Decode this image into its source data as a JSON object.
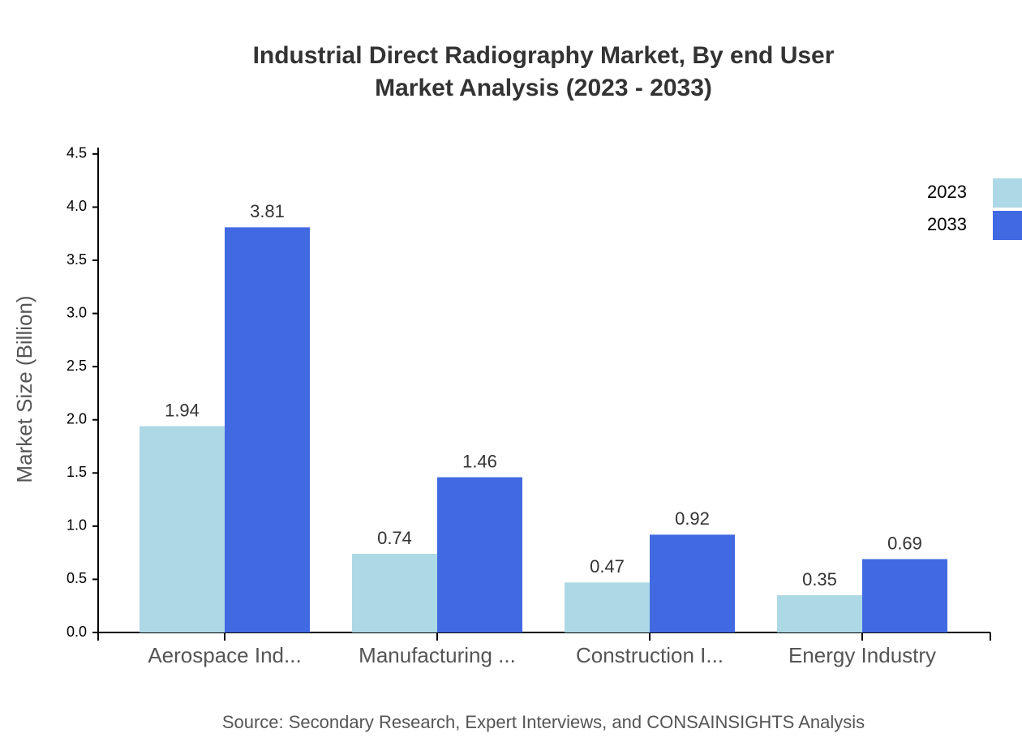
{
  "chart_data": {
    "type": "bar",
    "title": "Industrial Direct Radiography Market, By end User",
    "subtitle": "Market Analysis (2023 - 2033)",
    "y_label": "Market Size (Billion)",
    "source": "Source: Secondary Research, Expert Interviews, and CONSAINSIGHTS Analysis",
    "categories": [
      "Aerospace Ind...",
      "Manufacturing ...",
      "Construction I...",
      "Energy Industry"
    ],
    "series": [
      {
        "name": "2023",
        "color": "#add8e6",
        "values": [
          1.94,
          0.74,
          0.47,
          0.35
        ]
      },
      {
        "name": "2033",
        "color": "#4169e1",
        "values": [
          3.81,
          1.46,
          0.92,
          0.69
        ]
      }
    ],
    "ylim": [
      0,
      4.56
    ],
    "yticks": [
      {
        "value": 0,
        "label": "0.0"
      },
      0.5,
      {
        "value": 1,
        "label": "1.0"
      },
      1.5,
      {
        "value": 2,
        "label": "2.0"
      },
      2.5,
      {
        "value": 3,
        "label": "3.0"
      },
      3.5,
      {
        "value": 4,
        "label": "4.0"
      },
      4.5
    ],
    "legend": "top-right",
    "grid": false
  }
}
